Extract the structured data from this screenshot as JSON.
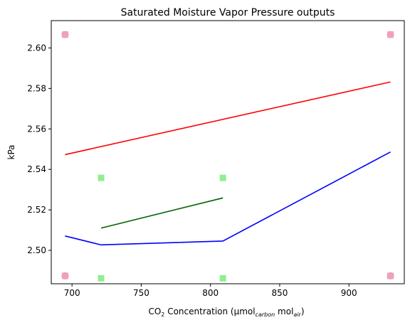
{
  "chart_data": {
    "type": "scatter",
    "title": "Saturated Moisture Vapor Pressure outputs",
    "xlabel": {
      "prefix": "CO",
      "prefix_sub": "2",
      "middle": " Concentration (μmol",
      "carbon_sub": "carbon",
      "middle2": " mol",
      "air_sub": "air",
      "suffix": ")"
    },
    "ylabel": "kPa",
    "xlim": [
      685,
      940
    ],
    "ylim": [
      2.4835,
      2.6135
    ],
    "x_ticks": [
      700,
      750,
      800,
      850,
      900
    ],
    "x_tick_labels": [
      "700",
      "750",
      "800",
      "850",
      "900"
    ],
    "y_ticks": [
      2.5,
      2.52,
      2.54,
      2.56,
      2.58,
      2.6
    ],
    "y_tick_labels": [
      "2.50",
      "2.52",
      "2.54",
      "2.56",
      "2.58",
      "2.60"
    ],
    "grid": false,
    "legend": "none",
    "lines": [
      {
        "color": "#ff0000",
        "x": [
          695,
          930
        ],
        "y": [
          2.5473,
          2.5832
        ]
      },
      {
        "color": "#0000ff",
        "x": [
          695,
          721,
          809,
          930
        ],
        "y": [
          2.5071,
          2.5027,
          2.5046,
          2.5486
        ]
      },
      {
        "color": "#006400",
        "x": [
          721,
          809
        ],
        "y": [
          2.511,
          2.5259
        ]
      }
    ],
    "scatter_groups": [
      {
        "color": "#8da0cb",
        "marker": "circle",
        "x": [
          695,
          695,
          930,
          930
        ],
        "y": [
          2.6066,
          2.4874,
          2.6066,
          2.4874
        ]
      },
      {
        "color": "#f4a0b4",
        "marker": "square",
        "x": [
          695,
          695,
          930,
          930
        ],
        "y": [
          2.6066,
          2.4874,
          2.6066,
          2.4874
        ]
      },
      {
        "color": "#90ee90",
        "marker": "square",
        "x": [
          721,
          721,
          809,
          809
        ],
        "y": [
          2.5358,
          2.4862,
          2.5358,
          2.4862
        ]
      }
    ]
  }
}
